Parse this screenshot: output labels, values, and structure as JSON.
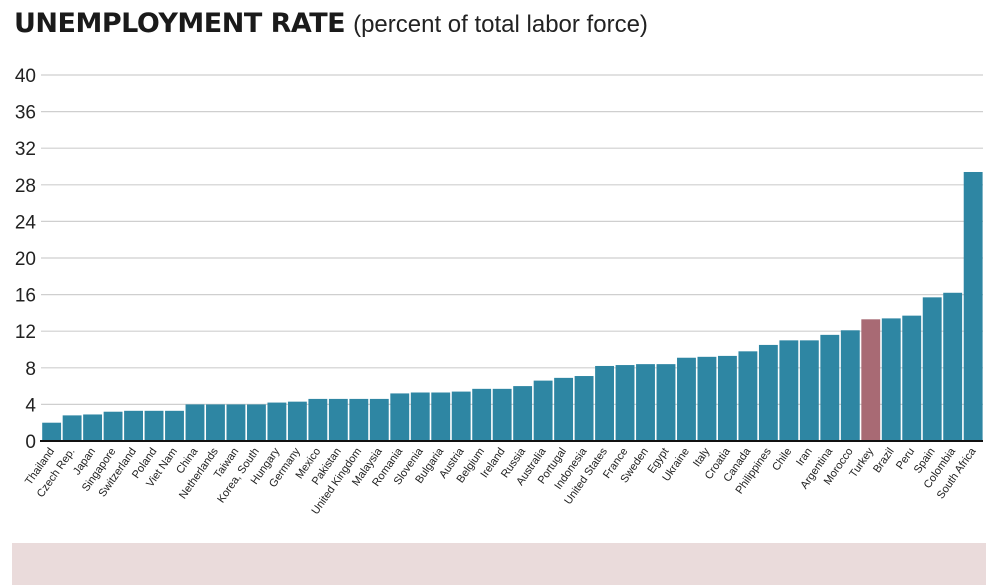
{
  "title": {
    "main": "UNEMPLOYMENT RATE",
    "sub": "(percent of total labor force)"
  },
  "colors": {
    "bar": "#2e86a3",
    "highlight": "#a86a74",
    "grid": "#cfcfcf",
    "axis": "#111111",
    "footer": "#eadbdb"
  },
  "chart_data": {
    "type": "bar",
    "title": "UNEMPLOYMENT RATE (percent of total labor force)",
    "xlabel": "",
    "ylabel": "",
    "ylim": [
      0,
      40
    ],
    "yticks": [
      0,
      4,
      8,
      12,
      16,
      20,
      24,
      28,
      32,
      36,
      40
    ],
    "grid": true,
    "highlight_category": "Turkey",
    "categories": [
      "Thailand",
      "Czech Rep.",
      "Japan",
      "Singapore",
      "Switzerland",
      "Poland",
      "Viet Nam",
      "China",
      "Netherlands",
      "Taiwan",
      "Korea, South",
      "Hungary",
      "Germany",
      "Mexico",
      "Pakistan",
      "United Kingdom",
      "Malaysia",
      "Romania",
      "Slovenia",
      "Bulgaria",
      "Austria",
      "Belgium",
      "Ireland",
      "Russia",
      "Australia",
      "Portugal",
      "Indonesia",
      "United States",
      "France",
      "Sweden",
      "Egypt",
      "Ukraine",
      "Italy",
      "Croatia",
      "Canada",
      "Philippines",
      "Chile",
      "Iran",
      "Argentina",
      "Morocco",
      "Turkey",
      "Brazil",
      "Peru",
      "Spain",
      "Colombia",
      "South Africa"
    ],
    "values": [
      2.0,
      2.8,
      2.9,
      3.2,
      3.3,
      3.3,
      3.3,
      4.0,
      4.0,
      4.0,
      4.0,
      4.2,
      4.3,
      4.6,
      4.6,
      4.6,
      4.6,
      5.2,
      5.3,
      5.3,
      5.4,
      5.7,
      5.7,
      6.0,
      6.6,
      6.9,
      7.1,
      8.2,
      8.3,
      8.4,
      8.4,
      9.1,
      9.2,
      9.3,
      9.8,
      10.5,
      11.0,
      11.0,
      11.6,
      12.1,
      13.3,
      13.4,
      13.7,
      15.7,
      16.2,
      29.4
    ]
  }
}
